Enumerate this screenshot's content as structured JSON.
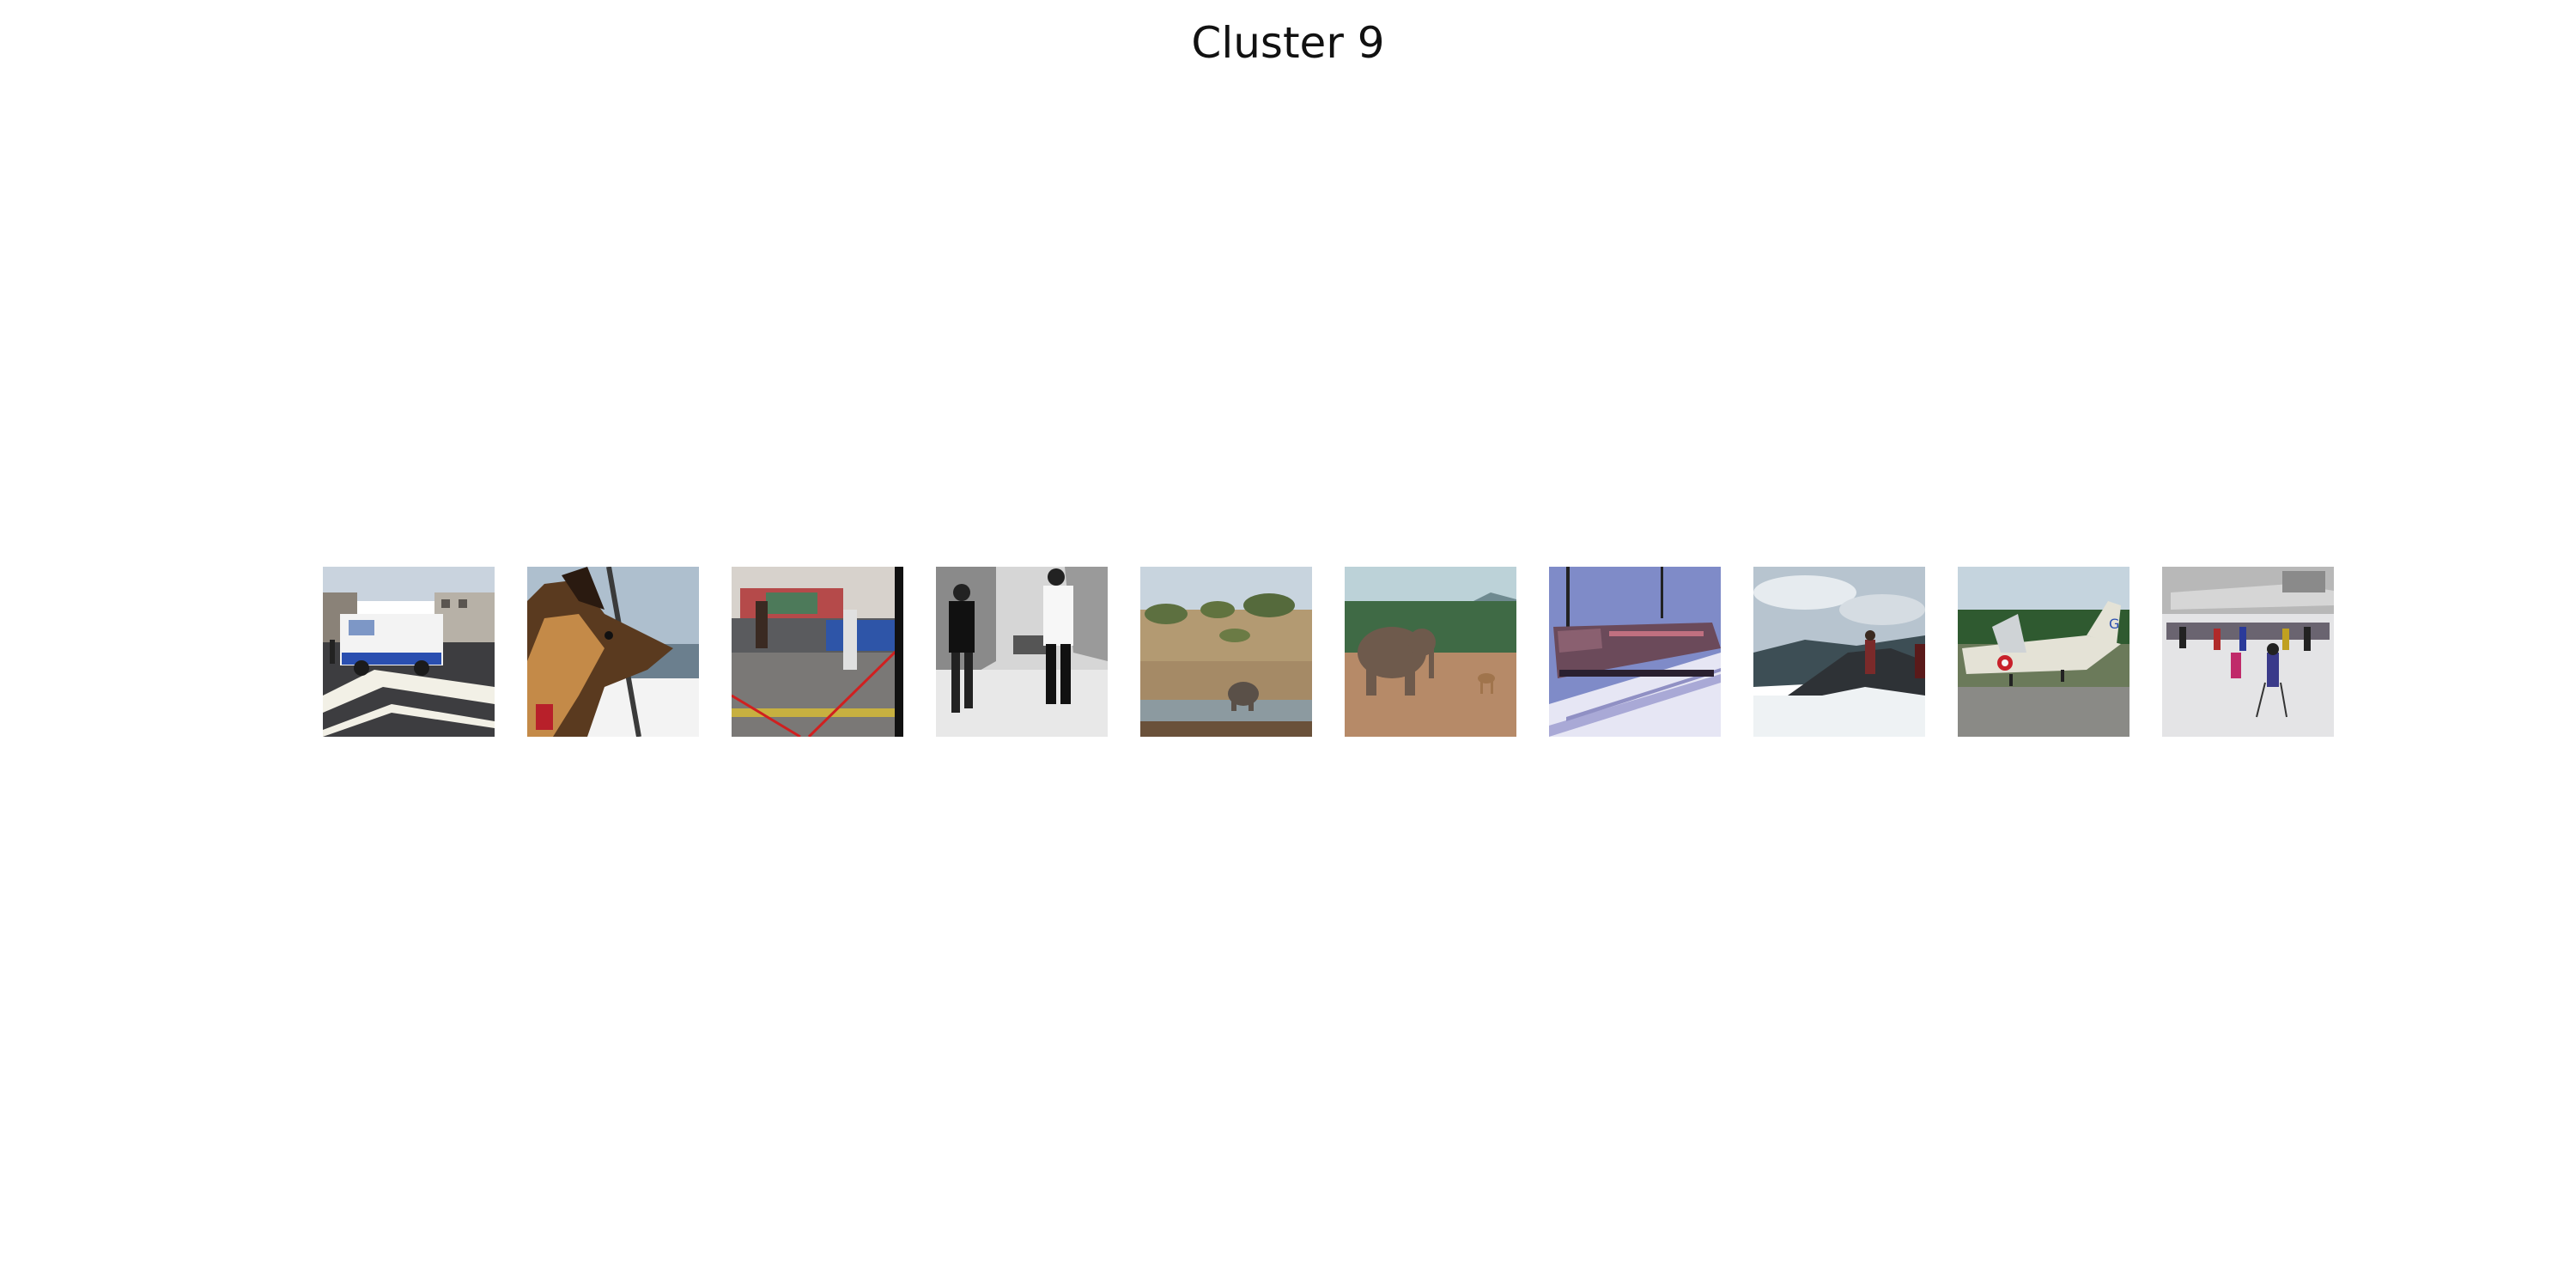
{
  "figure": {
    "title": "Cluster 9"
  },
  "thumbnails": [
    {
      "id": 1,
      "depicts": "ice-cream-truck-street"
    },
    {
      "id": 2,
      "depicts": "dog-in-car-window"
    },
    {
      "id": 3,
      "depicts": "people-on-street-with-leash"
    },
    {
      "id": 4,
      "depicts": "men-walking-bw-street"
    },
    {
      "id": 5,
      "depicts": "elephant-at-waterhole"
    },
    {
      "id": 6,
      "depicts": "elephant-and-deer"
    },
    {
      "id": 7,
      "depicts": "train-in-snow"
    },
    {
      "id": 8,
      "depicts": "hiker-on-snowy-mountain"
    },
    {
      "id": 9,
      "depicts": "jet-aircraft-on-display"
    },
    {
      "id": 10,
      "depicts": "skiers-in-snow-crowd"
    }
  ]
}
